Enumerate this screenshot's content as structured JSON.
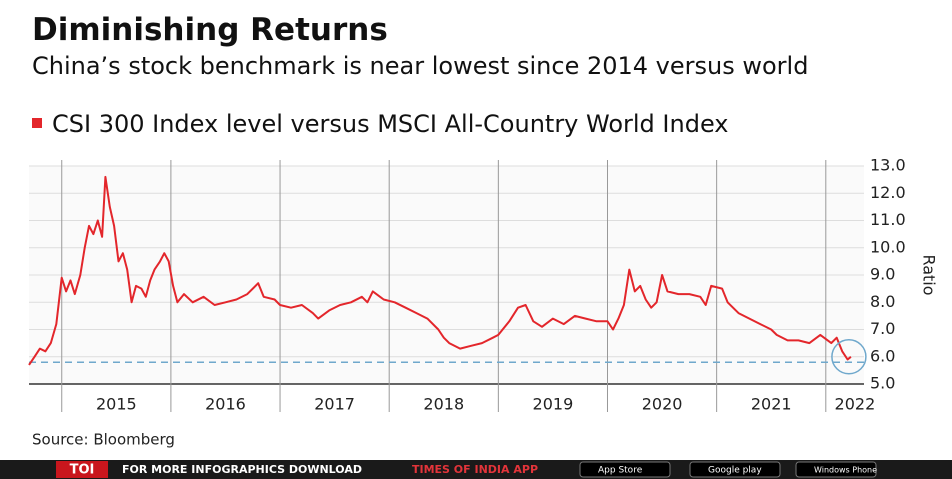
{
  "chart_data": {
    "type": "line",
    "title": "Diminishing Returns",
    "subtitle": "China’s stock benchmark is near lowest since 2014 versus world",
    "y_label": "Ratio",
    "source": "Source: Bloomberg",
    "x": [
      2014.7,
      2014.75,
      2014.8,
      2014.85,
      2014.9,
      2014.95,
      2015.0,
      2015.04,
      2015.08,
      2015.12,
      2015.17,
      2015.21,
      2015.25,
      2015.29,
      2015.33,
      2015.37,
      2015.4,
      2015.44,
      2015.48,
      2015.52,
      2015.56,
      2015.6,
      2015.64,
      2015.68,
      2015.73,
      2015.77,
      2015.81,
      2015.85,
      2015.9,
      2015.94,
      2015.98,
      2016.02,
      2016.06,
      2016.12,
      2016.2,
      2016.3,
      2016.4,
      2016.5,
      2016.6,
      2016.7,
      2016.8,
      2016.85,
      2016.95,
      2017.0,
      2017.1,
      2017.2,
      2017.3,
      2017.35,
      2017.45,
      2017.55,
      2017.65,
      2017.75,
      2017.8,
      2017.85,
      2017.95,
      2018.05,
      2018.15,
      2018.25,
      2018.35,
      2018.45,
      2018.5,
      2018.55,
      2018.65,
      2018.75,
      2018.85,
      2018.95,
      2019.0,
      2019.1,
      2019.18,
      2019.25,
      2019.32,
      2019.4,
      2019.5,
      2019.6,
      2019.7,
      2019.8,
      2019.9,
      2020.0,
      2020.05,
      2020.1,
      2020.15,
      2020.2,
      2020.25,
      2020.3,
      2020.35,
      2020.4,
      2020.45,
      2020.5,
      2020.55,
      2020.65,
      2020.75,
      2020.85,
      2020.9,
      2020.95,
      2021.05,
      2021.1,
      2021.2,
      2021.3,
      2021.4,
      2021.5,
      2021.55,
      2021.65,
      2021.75,
      2021.85,
      2021.95,
      2022.05,
      2022.1,
      2022.15,
      2022.2,
      2022.23
    ],
    "series": [
      {
        "name": "CSI 300 Index level versus MSCI All-Country World Index",
        "color": "#e3262b",
        "values": [
          5.7,
          6.0,
          6.3,
          6.2,
          6.5,
          7.2,
          8.9,
          8.4,
          8.8,
          8.3,
          9.0,
          10.0,
          10.8,
          10.5,
          11.0,
          10.4,
          12.6,
          11.5,
          10.8,
          9.5,
          9.8,
          9.2,
          8.0,
          8.6,
          8.5,
          8.2,
          8.8,
          9.2,
          9.5,
          9.8,
          9.5,
          8.6,
          8.0,
          8.3,
          8.0,
          8.2,
          7.9,
          8.0,
          8.1,
          8.3,
          8.7,
          8.2,
          8.1,
          7.9,
          7.8,
          7.9,
          7.6,
          7.4,
          7.7,
          7.9,
          8.0,
          8.2,
          8.0,
          8.4,
          8.1,
          8.0,
          7.8,
          7.6,
          7.4,
          7.0,
          6.7,
          6.5,
          6.3,
          6.4,
          6.5,
          6.7,
          6.8,
          7.3,
          7.8,
          7.9,
          7.3,
          7.1,
          7.4,
          7.2,
          7.5,
          7.4,
          7.3,
          7.3,
          7.0,
          7.4,
          7.9,
          9.2,
          8.4,
          8.6,
          8.1,
          7.8,
          8.0,
          9.0,
          8.4,
          8.3,
          8.3,
          8.2,
          7.9,
          8.6,
          8.5,
          8.0,
          7.6,
          7.4,
          7.2,
          7.0,
          6.8,
          6.6,
          6.6,
          6.5,
          6.8,
          6.5,
          6.7,
          6.2,
          5.9,
          6.0
        ]
      }
    ],
    "xlim": [
      2014.7,
      2022.35
    ],
    "xticks": [
      {
        "value": 2015,
        "label": "2015"
      },
      {
        "value": 2016,
        "label": "2016"
      },
      {
        "value": 2017,
        "label": "2017"
      },
      {
        "value": 2018,
        "label": "2018"
      },
      {
        "value": 2019,
        "label": "2019"
      },
      {
        "value": 2020,
        "label": "2020"
      },
      {
        "value": 2021,
        "label": "2021"
      },
      {
        "value": 2022,
        "label": "2022"
      }
    ],
    "ylim": [
      5,
      13
    ],
    "yticks": [
      {
        "value": 5,
        "label": "5.0"
      },
      {
        "value": 6,
        "label": "6.0"
      },
      {
        "value": 7,
        "label": "7.0"
      },
      {
        "value": 8,
        "label": "8.0"
      },
      {
        "value": 9,
        "label": "9.0"
      },
      {
        "value": 10,
        "label": "10.0"
      },
      {
        "value": 11,
        "label": "11.0"
      },
      {
        "value": 12,
        "label": "12.0"
      },
      {
        "value": 13,
        "label": "13.0"
      }
    ],
    "grid": true,
    "reference_line": {
      "value": 5.8,
      "color": "#6fa8cc"
    }
  },
  "footer": {
    "logo": "TOI",
    "text": "FOR MORE  INFOGRAPHICS DOWNLOAD",
    "app": "TIMES OF INDIA  APP",
    "badges": [
      "App Store",
      "Google play",
      "Windows Phone"
    ]
  }
}
